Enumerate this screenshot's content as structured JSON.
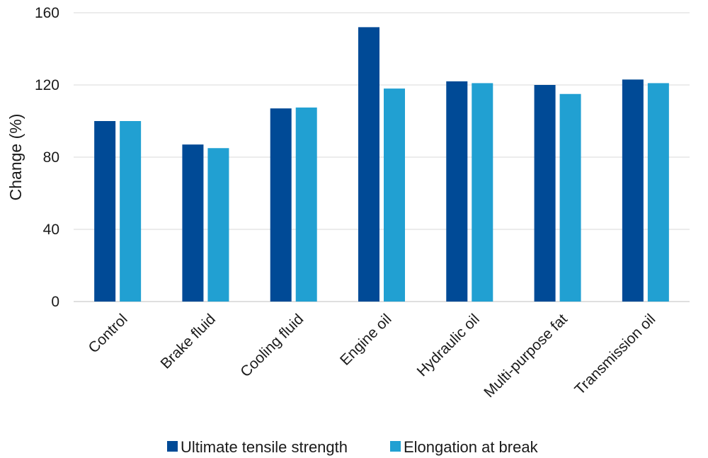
{
  "chart_data": {
    "type": "bar",
    "title": "",
    "xlabel": "",
    "ylabel": "Change (%)",
    "ylim": [
      0,
      160
    ],
    "yticks": [
      0,
      40,
      80,
      120,
      160
    ],
    "grid": true,
    "legend_position": "bottom",
    "categories": [
      "Control",
      "Brake fluid",
      "Cooling fluid",
      "Engine oil",
      "Hydraulic oil",
      "Multi-purpose fat",
      "Transmission oil"
    ],
    "series": [
      {
        "name": "Ultimate tensile strength",
        "color": "#004a96",
        "values": [
          100,
          87,
          107,
          152,
          122,
          120,
          123
        ]
      },
      {
        "name": "Elongation at break",
        "color": "#21a0d2",
        "values": [
          100,
          85,
          107.5,
          118,
          121,
          115,
          121
        ]
      }
    ]
  }
}
